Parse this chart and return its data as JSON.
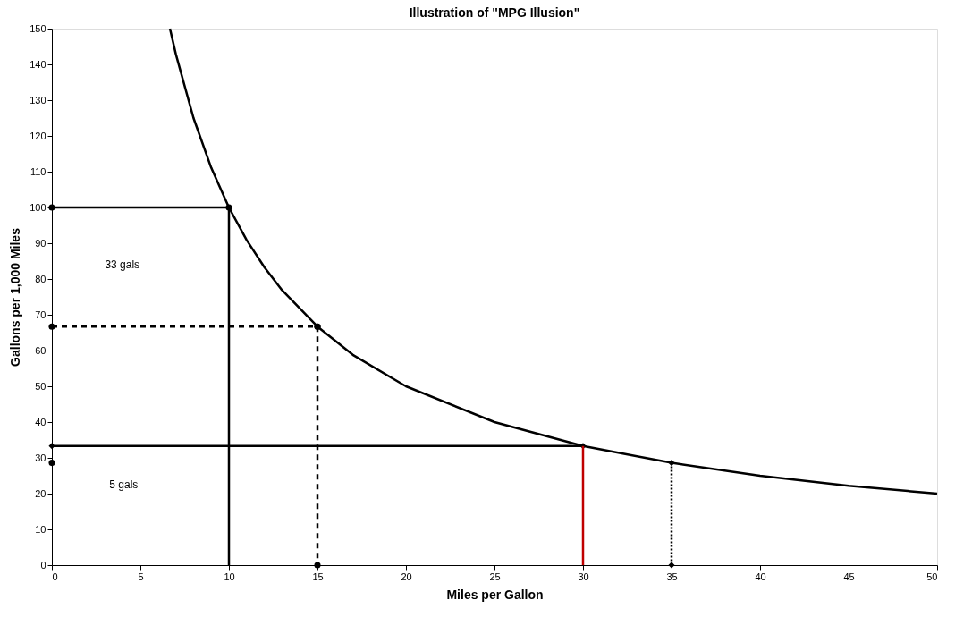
{
  "chart_data": {
    "type": "line",
    "title": "Illustration of \"MPG Illusion\"",
    "xlabel": "Miles per Gallon",
    "ylabel": "Gallons per 1,000 Miles",
    "xlim": [
      0,
      50
    ],
    "xticks": [
      0,
      5,
      10,
      15,
      20,
      25,
      30,
      35,
      40,
      45,
      50
    ],
    "ylim": [
      0,
      150
    ],
    "yticks": [
      0,
      10,
      20,
      30,
      40,
      50,
      60,
      70,
      80,
      90,
      100,
      110,
      120,
      130,
      140,
      150
    ],
    "grid": false,
    "series": [
      {
        "color": "#000000",
        "line_style": "solid",
        "marker": "none",
        "x": [
          6.67,
          7,
          8,
          9,
          10,
          11,
          12,
          13,
          15,
          17,
          20,
          25,
          30,
          35,
          40,
          45,
          50
        ],
        "values": [
          150,
          142.9,
          125,
          111.1,
          100,
          90.9,
          83.3,
          76.9,
          66.7,
          58.8,
          50,
          40,
          33.3,
          28.6,
          25,
          22.2,
          20
        ]
      },
      {
        "color": "#000000",
        "line_style": "solid",
        "marker": "circle",
        "x": [
          0,
          10
        ],
        "values": [
          100,
          100
        ]
      },
      {
        "color": "#000000",
        "line_style": "solid",
        "marker": "none",
        "x": [
          10,
          10
        ],
        "values": [
          100,
          0
        ]
      },
      {
        "color": "#000000",
        "line_style": "dashed",
        "marker": "circle",
        "x": [
          0,
          15
        ],
        "values": [
          66.7,
          66.7
        ]
      },
      {
        "color": "#000000",
        "line_style": "dashed",
        "marker": "circle",
        "x": [
          15,
          15
        ],
        "values": [
          66.7,
          0
        ]
      },
      {
        "color": "#000000",
        "line_style": "solid",
        "marker": "diamond",
        "x": [
          0,
          30
        ],
        "values": [
          33.3,
          33.3
        ]
      },
      {
        "color": "#c00000",
        "line_style": "solid",
        "marker": "none",
        "x": [
          30,
          30
        ],
        "values": [
          33.3,
          0
        ]
      },
      {
        "color": "#000000",
        "line_style": "dotted",
        "marker": "diamond",
        "x": [
          35,
          35
        ],
        "values": [
          28.6,
          0
        ]
      },
      {
        "type": "scatter",
        "color": "#000000",
        "marker": "circle",
        "x": [
          0
        ],
        "values": [
          28.6
        ]
      }
    ],
    "annotations": [
      "33 gals",
      "5 gals"
    ]
  }
}
